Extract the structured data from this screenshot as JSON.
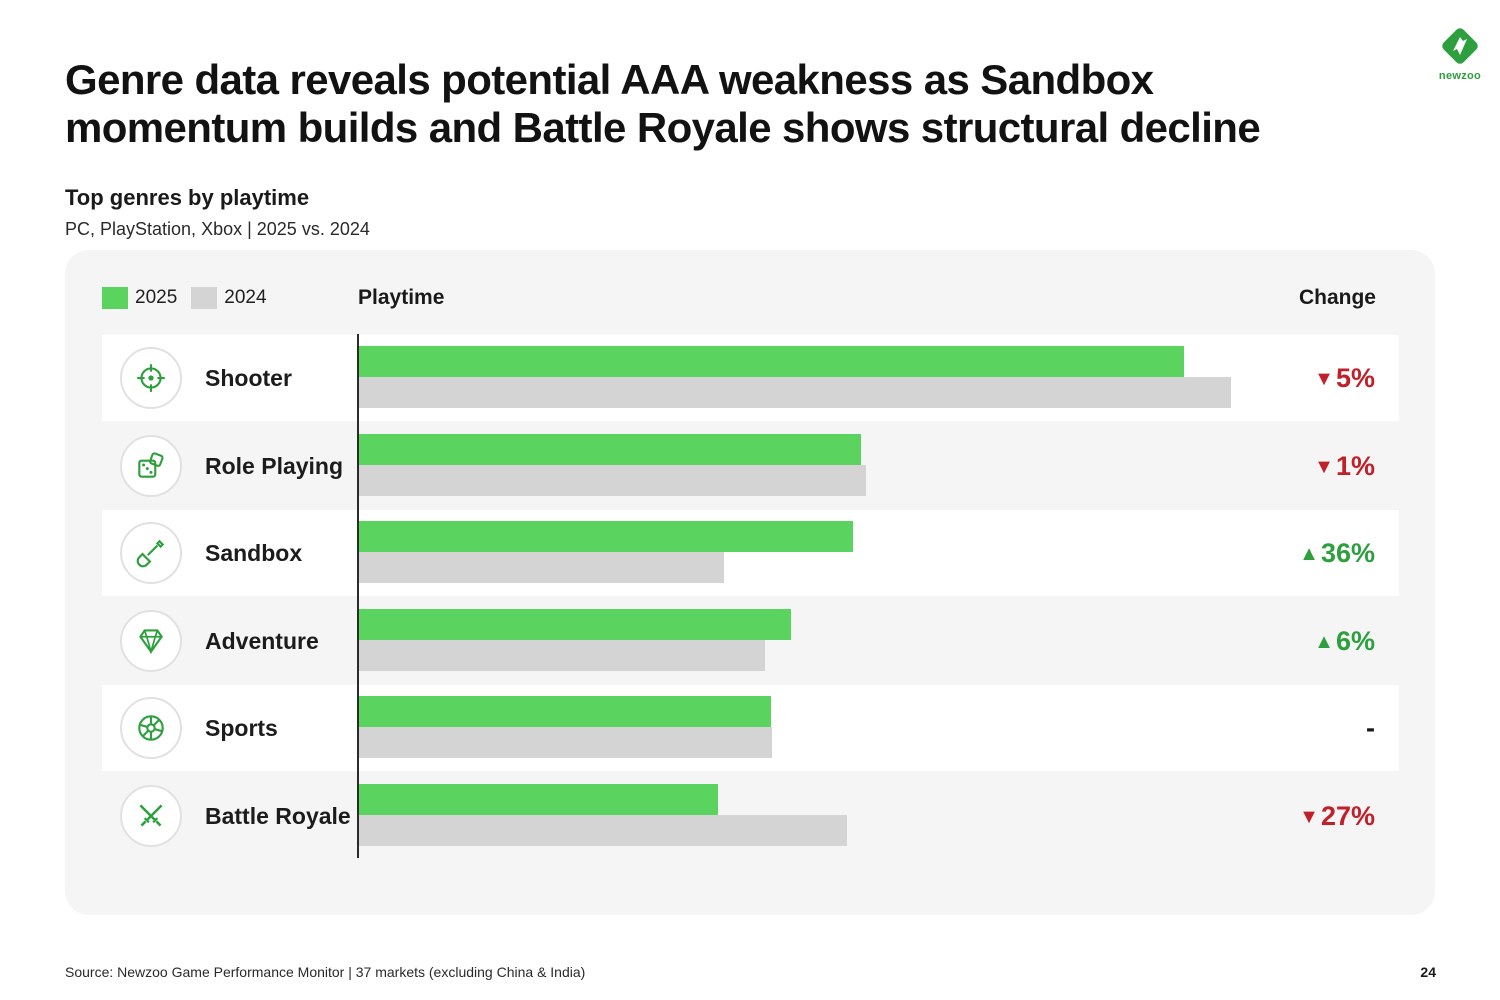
{
  "header": {
    "title": "Genre data reveals potential AAA weakness as Sandbox momentum builds and Battle Royale shows structural decline",
    "logo_text": "newzoo"
  },
  "colors": {
    "series_2025": "#5bd45f",
    "series_2024": "#d4d4d4",
    "down": "#c0202a",
    "up": "#2e9f3e",
    "neutral": "#1a1a1a"
  },
  "chart_data": {
    "type": "bar",
    "orientation": "horizontal",
    "title": "Top genres by playtime",
    "subtitle": "PC, PlayStation, Xbox | 2025 vs. 2024",
    "xlabel": "Playtime",
    "change_label": "Change",
    "categories": [
      "Shooter",
      "Role Playing",
      "Sandbox",
      "Adventure",
      "Sports",
      "Battle Royale"
    ],
    "icons": [
      "crosshair-icon",
      "dice-icon",
      "shovel-icon",
      "gem-icon",
      "ball-icon",
      "crossed-swords-icon"
    ],
    "series": [
      {
        "name": "2025",
        "values": [
          94.4,
          57.4,
          56.5,
          49.4,
          47.1,
          41.1
        ]
      },
      {
        "name": "2024",
        "values": [
          99.8,
          58.0,
          41.8,
          46.5,
          47.3,
          55.8
        ]
      }
    ],
    "changes": [
      {
        "text": "5%",
        "direction": "down"
      },
      {
        "text": "1%",
        "direction": "down"
      },
      {
        "text": "36%",
        "direction": "up"
      },
      {
        "text": "6%",
        "direction": "up"
      },
      {
        "text": "-",
        "direction": "none"
      },
      {
        "text": "27%",
        "direction": "down"
      }
    ],
    "xlim": [
      0,
      100
    ],
    "grid": false,
    "legend": "top-left"
  },
  "footer": {
    "source": "Source: Newzoo Game Performance Monitor | 37 markets (excluding China & India)",
    "page_number": "24"
  }
}
